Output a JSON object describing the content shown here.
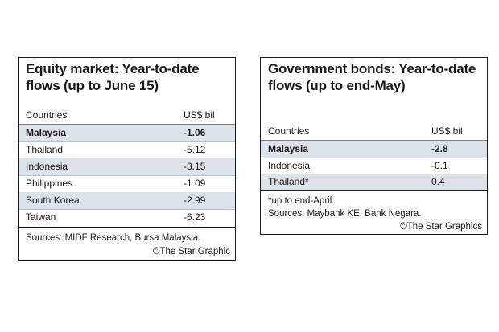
{
  "chart_data": [
    {
      "type": "table",
      "title": "Equity market: Year-to-date flows (up to June 15)",
      "columns": [
        "Countries",
        "US$ bil"
      ],
      "rows": [
        {
          "country": "Malaysia",
          "value": "-1.06"
        },
        {
          "country": "Thailand",
          "value": "-5.12"
        },
        {
          "country": "Indonesia",
          "value": "-3.15"
        },
        {
          "country": "Philippines",
          "value": "-1.09"
        },
        {
          "country": "South Korea",
          "value": "-2.99"
        },
        {
          "country": "Taiwan",
          "value": "-6.23"
        }
      ],
      "highlighted_row": "Malaysia",
      "sources": "Sources: MIDF Research, Bursa Malaysia.",
      "credit": "©The Star Graphic"
    },
    {
      "type": "table",
      "title": "Government bonds: Year-to-date flows (up to end-May)",
      "columns": [
        "Countries",
        "US$ bil"
      ],
      "rows": [
        {
          "country": "Malaysia",
          "value": "-2.8"
        },
        {
          "country": "Indonesia",
          "value": "-0.1"
        },
        {
          "country": "Thailand*",
          "value": "0.4"
        }
      ],
      "highlighted_row": "Malaysia",
      "note": "*up to end-April.",
      "sources": "Sources: Maybank KE, Bank Negara.",
      "credit": "©The Star Graphics"
    }
  ],
  "colors": {
    "row_shade": "#dde3ea",
    "row_rule": "#b9c2cf",
    "border": "#1a1a1a"
  }
}
